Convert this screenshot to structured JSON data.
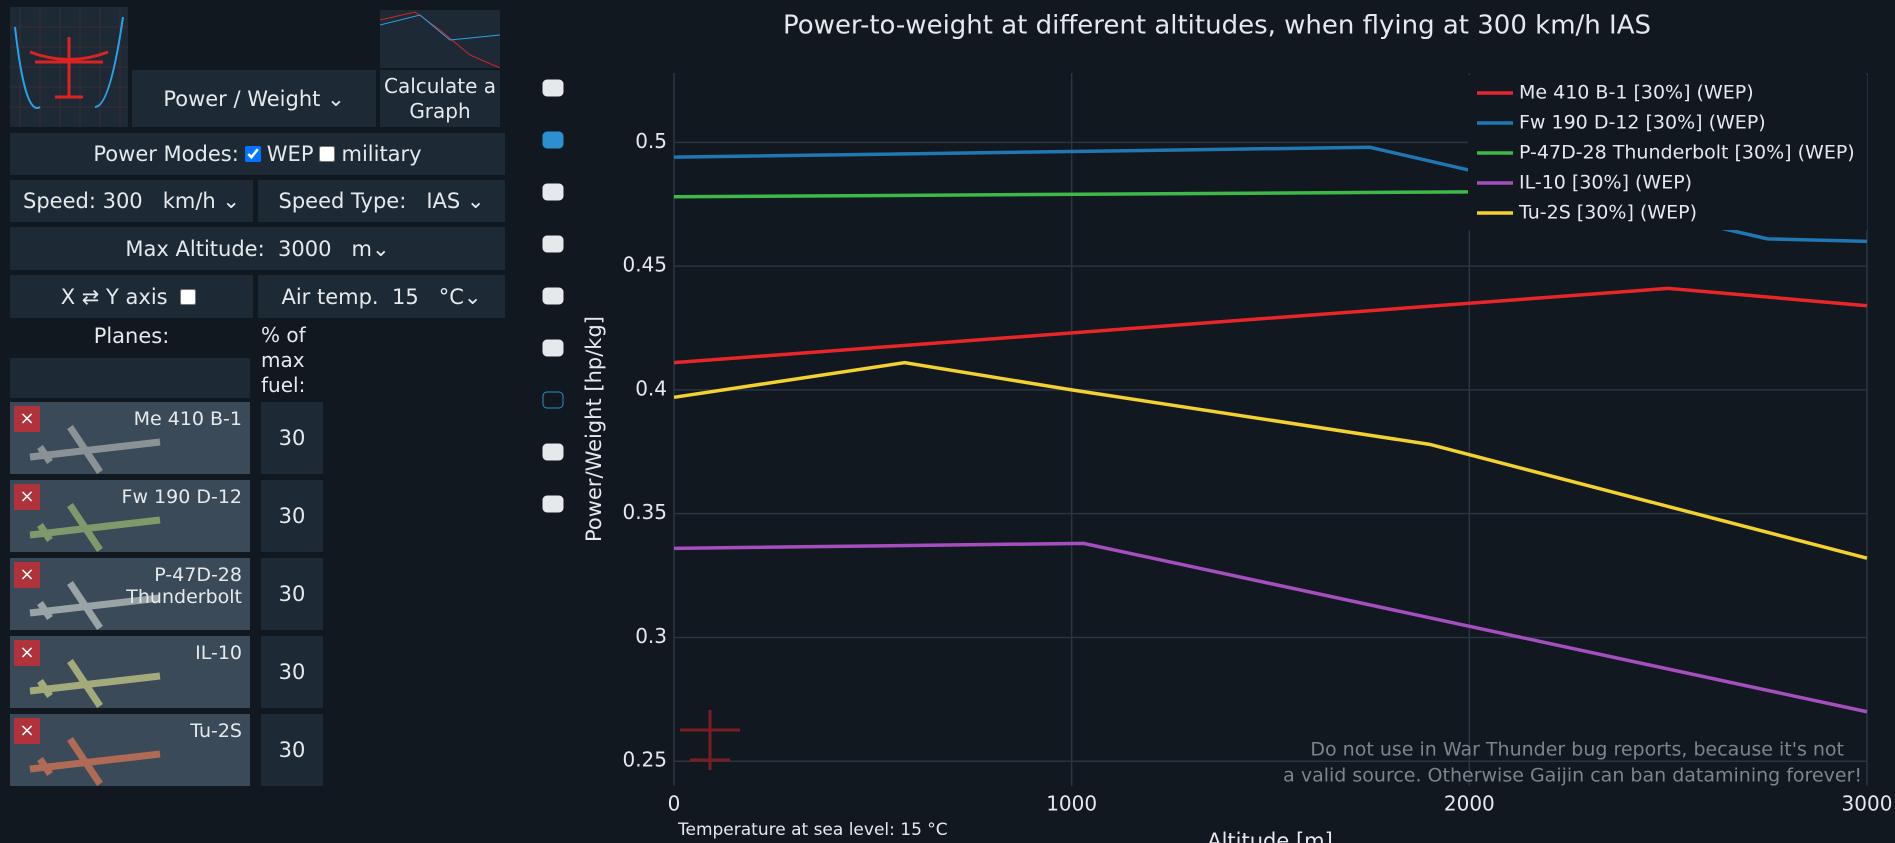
{
  "sidebar": {
    "metric": "Power / Weight",
    "calculate_button": "Calculate a Graph",
    "power_modes_label": "Power Modes:",
    "wep_label": "WEP",
    "wep_checked": true,
    "military_label": "military",
    "military_checked": false,
    "speed_label": "Speed:",
    "speed_value": "300",
    "speed_unit": "km/h",
    "speed_type_label": "Speed Type:",
    "speed_type": "IAS",
    "max_altitude_label": "Max Altitude:",
    "max_altitude_value": "3000",
    "altitude_unit": "m",
    "axis_swap_label": "X ⇄ Y axis",
    "axis_swap_checked": false,
    "air_temp_label": "Air temp.",
    "air_temp_value": "15",
    "temp_unit": "°C",
    "planes_label": "Planes:",
    "fuel_label": "% of max fuel:",
    "planes": [
      {
        "name": "Me 410 B-1",
        "fuel": 30
      },
      {
        "name": "Fw 190 D-12",
        "fuel": 30
      },
      {
        "name": "P-47D-28 Thunderbolt",
        "fuel": 30
      },
      {
        "name": "IL-10",
        "fuel": 30
      },
      {
        "name": "Tu-2S",
        "fuel": 30
      }
    ]
  },
  "chart_data": {
    "type": "line",
    "title": "Power-to-weight at different altitudes, when flying at 300 km/h IAS",
    "x_label": "Altitude [m]",
    "y_label": "Power/Weight [hp/kg]",
    "xlim": [
      0,
      3000
    ],
    "ylim": [
      0.24,
      0.528
    ],
    "xticks": [
      0,
      1000,
      2000,
      3000
    ],
    "yticks": [
      0.25,
      0.3,
      0.35,
      0.4,
      0.45,
      0.5
    ],
    "grid": true,
    "series": [
      {
        "name": "Me 410 B-1 [30%] (WEP)",
        "color": "#e8262a",
        "x": [
          0,
          2500,
          3000
        ],
        "values": [
          0.411,
          0.441,
          0.434
        ]
      },
      {
        "name": "Fw 190 D-12 [30%] (WEP)",
        "color": "#1f77b4",
        "x": [
          0,
          1750,
          2750,
          3000
        ],
        "values": [
          0.494,
          0.498,
          0.461,
          0.46
        ]
      },
      {
        "name": "P-47D-28 Thunderbolt [30%] (WEP)",
        "color": "#3fb84a",
        "x": [
          0,
          2000
        ],
        "values": [
          0.478,
          0.48
        ]
      },
      {
        "name": "IL-10 [30%] (WEP)",
        "color": "#a54fbf",
        "x": [
          0,
          1030,
          3000
        ],
        "values": [
          0.336,
          0.338,
          0.27
        ]
      },
      {
        "name": "Tu-2S [30%] (WEP)",
        "color": "#f2d130",
        "x": [
          0,
          580,
          1000,
          1900,
          3000
        ],
        "values": [
          0.397,
          0.411,
          0.4,
          0.378,
          0.332
        ]
      }
    ],
    "annotations": [
      "Do not use in War Thunder bug reports, because it's not",
      "a valid source. Otherwise Gaijin can ban datamining forever!",
      "Temperature at sea level: 15 °C"
    ]
  }
}
